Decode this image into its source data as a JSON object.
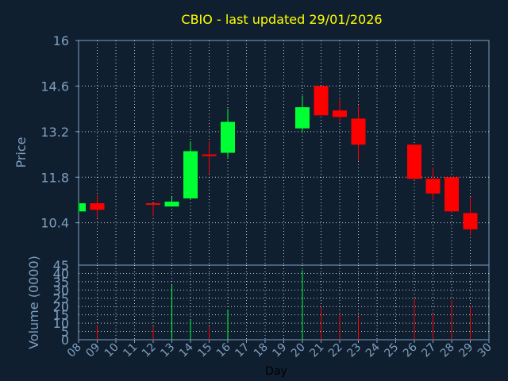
{
  "chart_data": [
    {
      "type": "candlestick",
      "title": "CBIO - last updated 29/01/2026",
      "ylabel": "Price",
      "ylim": [
        9.1,
        16.0
      ],
      "yticks": [
        "16",
        "14.6",
        "13.2",
        "11.8",
        "10.4"
      ],
      "ytick_values": [
        16,
        14.6,
        13.2,
        11.8,
        10.4
      ],
      "grid": true,
      "colors": {
        "up": "#00ff33",
        "down": "#ff0000",
        "grid": "#ffffff",
        "axis_text": "#7f9fbf",
        "title": "#ffff00"
      },
      "candles": [
        {
          "day": 8,
          "open": 10.75,
          "high": 11.05,
          "low": 10.7,
          "close": 11.0
        },
        {
          "day": 9,
          "open": 11.0,
          "high": 11.25,
          "low": 10.55,
          "close": 10.8
        },
        {
          "day": 12,
          "open": 11.0,
          "high": 11.0,
          "low": 10.6,
          "close": 10.97
        },
        {
          "day": 13,
          "open": 10.9,
          "high": 11.2,
          "low": 10.9,
          "close": 11.05
        },
        {
          "day": 14,
          "open": 11.15,
          "high": 12.9,
          "low": 11.1,
          "close": 12.6
        },
        {
          "day": 15,
          "open": 12.5,
          "high": 12.9,
          "low": 11.9,
          "close": 12.45
        },
        {
          "day": 16,
          "open": 12.55,
          "high": 13.9,
          "low": 12.4,
          "close": 13.5
        },
        {
          "day": 20,
          "open": 13.3,
          "high": 14.3,
          "low": 13.2,
          "close": 13.95
        },
        {
          "day": 21,
          "open": 14.6,
          "high": 14.6,
          "low": 13.7,
          "close": 13.7
        },
        {
          "day": 22,
          "open": 13.85,
          "high": 14.2,
          "low": 13.5,
          "close": 13.65
        },
        {
          "day": 23,
          "open": 13.6,
          "high": 14.0,
          "low": 12.3,
          "close": 12.8
        },
        {
          "day": 26,
          "open": 12.8,
          "high": 12.8,
          "low": 11.7,
          "close": 11.75
        },
        {
          "day": 27,
          "open": 11.75,
          "high": 12.1,
          "low": 11.1,
          "close": 11.3
        },
        {
          "day": 28,
          "open": 11.8,
          "high": 11.8,
          "low": 10.7,
          "close": 10.75
        },
        {
          "day": 29,
          "open": 10.7,
          "high": 11.2,
          "low": 10.0,
          "close": 10.2
        }
      ]
    },
    {
      "type": "bar",
      "ylabel": "Volume (0000)",
      "xlabel": "Day",
      "ylim": [
        0,
        45
      ],
      "yticks": [
        "45",
        "40",
        "35",
        "30",
        "25",
        "20",
        "15",
        "10",
        "5",
        "0"
      ],
      "ytick_values": [
        45,
        40,
        35,
        30,
        25,
        20,
        15,
        10,
        5,
        0
      ],
      "categories": [
        "08",
        "09",
        "10",
        "11",
        "12",
        "13",
        "14",
        "15",
        "16",
        "17",
        "18",
        "19",
        "20",
        "21",
        "22",
        "23",
        "24",
        "25",
        "26",
        "27",
        "28",
        "29",
        "30"
      ],
      "category_values": [
        8,
        9,
        10,
        11,
        12,
        13,
        14,
        15,
        16,
        17,
        18,
        19,
        20,
        21,
        22,
        23,
        24,
        25,
        26,
        27,
        28,
        29,
        30
      ],
      "volumes": [
        {
          "day": 8,
          "value": 0,
          "dir": "up"
        },
        {
          "day": 9,
          "value": 9,
          "dir": "down"
        },
        {
          "day": 12,
          "value": 8,
          "dir": "down"
        },
        {
          "day": 13,
          "value": 33,
          "dir": "up"
        },
        {
          "day": 14,
          "value": 12,
          "dir": "up"
        },
        {
          "day": 15,
          "value": 8,
          "dir": "down"
        },
        {
          "day": 16,
          "value": 18,
          "dir": "up"
        },
        {
          "day": 20,
          "value": 42,
          "dir": "up"
        },
        {
          "day": 21,
          "value": 20,
          "dir": "down"
        },
        {
          "day": 22,
          "value": 16,
          "dir": "down"
        },
        {
          "day": 23,
          "value": 14,
          "dir": "down"
        },
        {
          "day": 26,
          "value": 25,
          "dir": "down"
        },
        {
          "day": 27,
          "value": 16,
          "dir": "down"
        },
        {
          "day": 28,
          "value": 24,
          "dir": "down"
        },
        {
          "day": 29,
          "value": 20,
          "dir": "down"
        }
      ]
    }
  ]
}
